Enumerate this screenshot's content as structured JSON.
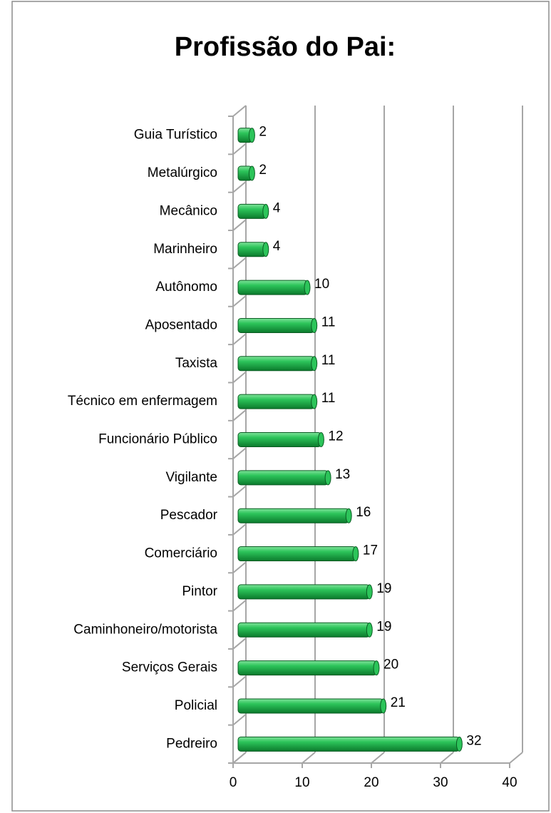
{
  "chart_data": {
    "type": "bar",
    "orientation": "horizontal",
    "title": "Profissão do Pai:",
    "categories": [
      "Guia Turístico",
      "Metalúrgico",
      "Mecânico",
      "Marinheiro",
      "Autônomo",
      "Aposentado",
      "Taxista",
      "Técnico em enfermagem",
      "Funcionário Público",
      "Vigilante",
      "Pescador",
      "Comerciário",
      "Pintor",
      "Caminhoneiro/motorista",
      "Serviços Gerais",
      "Policial",
      "Pedreiro"
    ],
    "values": [
      2,
      2,
      4,
      4,
      10,
      11,
      11,
      11,
      12,
      13,
      16,
      17,
      19,
      19,
      20,
      21,
      32
    ],
    "color": "#1db34a",
    "xlim": [
      0,
      40
    ],
    "xticks": [
      0,
      10,
      20,
      30,
      40
    ],
    "grid": true,
    "data_labels": true
  }
}
